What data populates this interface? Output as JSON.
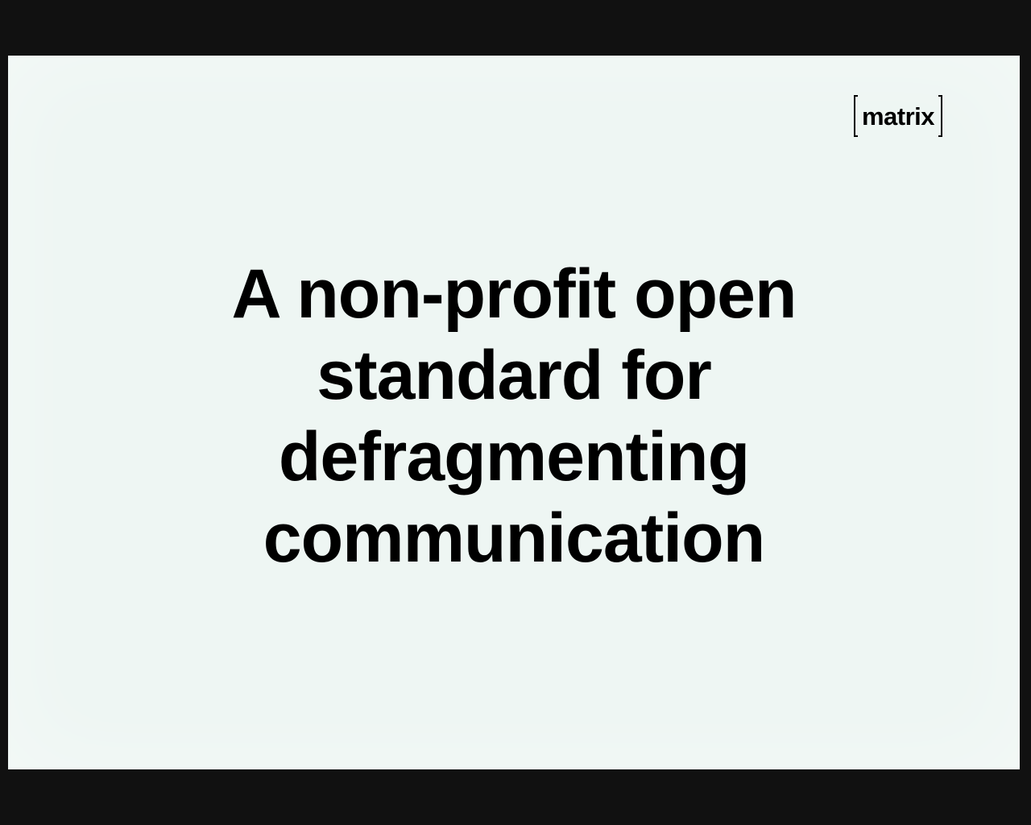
{
  "slide": {
    "logo": {
      "text": "matrix",
      "icon": "bracket-logo"
    },
    "headline": {
      "lines": [
        "A non-profit open",
        "standard for",
        "defragmenting",
        "communication"
      ]
    }
  },
  "colors": {
    "frame": "#111111",
    "slide_background": "#eef6f3",
    "text": "#000000"
  }
}
